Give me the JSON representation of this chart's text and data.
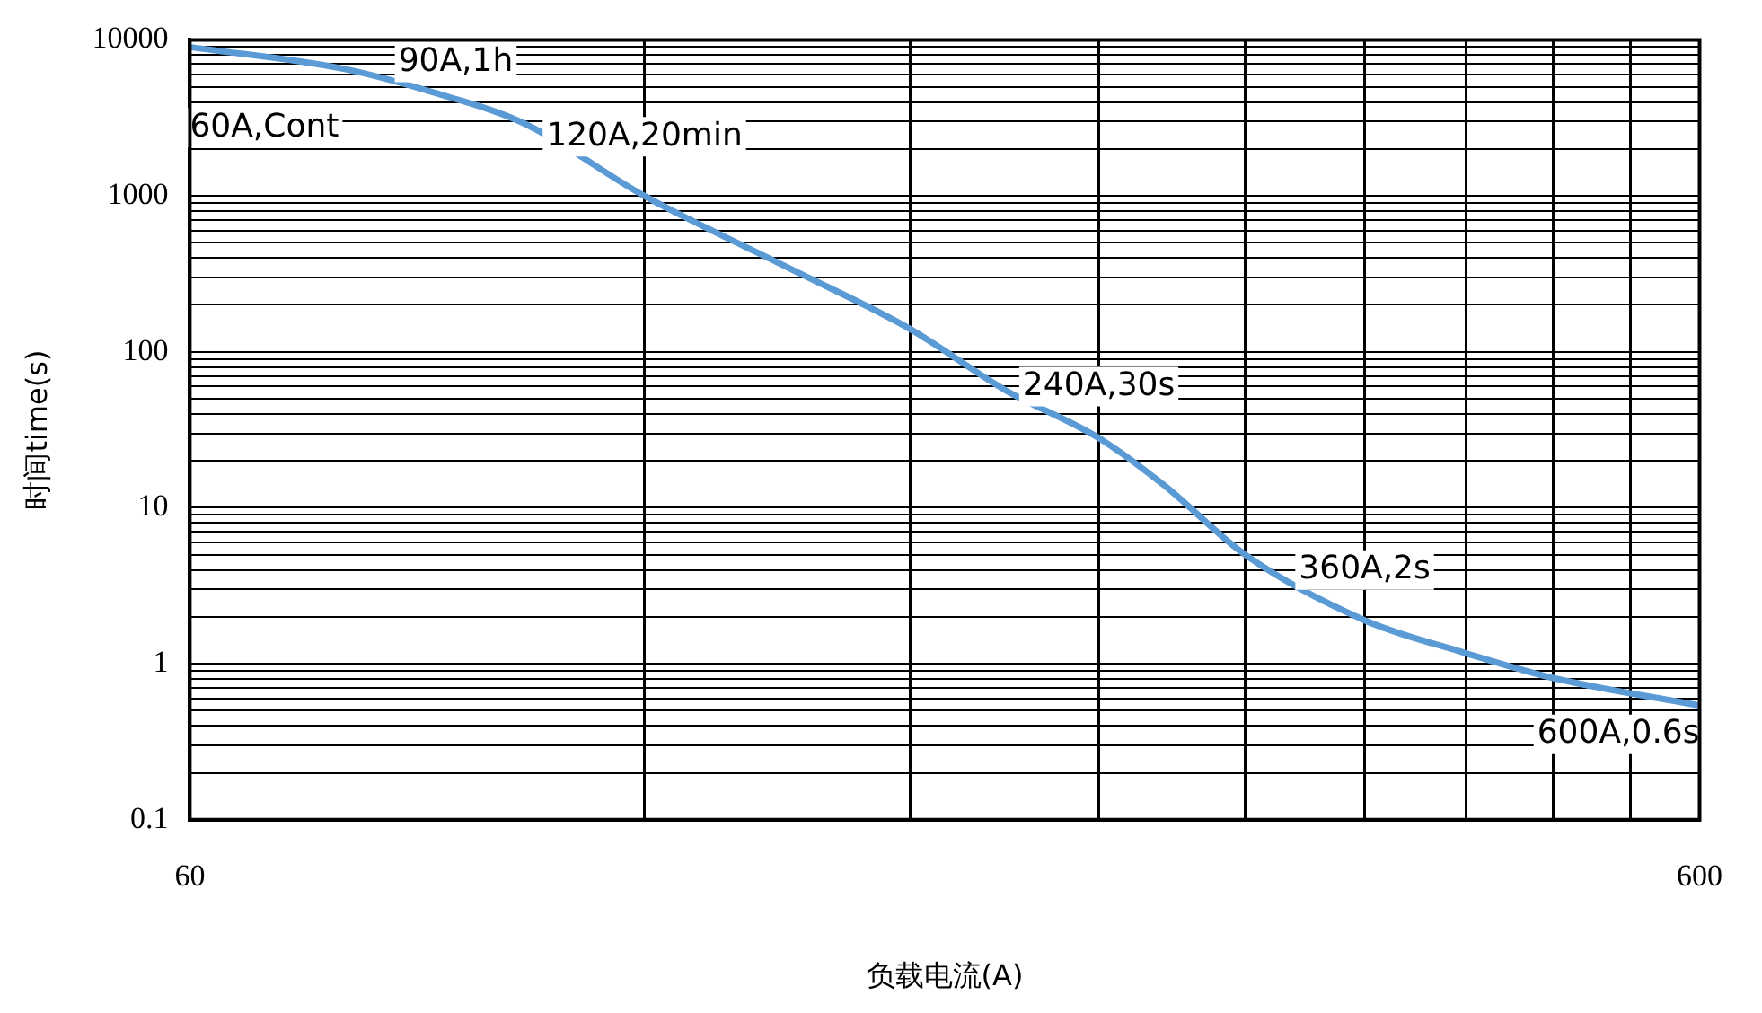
{
  "chart_data": {
    "type": "line",
    "xlabel": "负载电流(A)",
    "ylabel": "时间time(s)",
    "log": "xy",
    "grid": true,
    "marker": "none",
    "line_style": "solid",
    "xlim": [
      60,
      600
    ],
    "ylim": [
      0.1,
      10000
    ],
    "xticks": [
      60,
      {
        "value": 120,
        "label": null
      },
      {
        "value": 180,
        "label": null
      },
      {
        "value": 240,
        "label": null
      },
      {
        "value": 300,
        "label": null
      },
      {
        "value": 360,
        "label": null
      },
      {
        "value": 420,
        "label": null
      },
      {
        "value": 480,
        "label": null
      },
      {
        "value": 540,
        "label": null
      },
      600
    ],
    "yticks": [
      0.1,
      {
        "value": 0.2,
        "label": null
      },
      {
        "value": 0.3,
        "label": null
      },
      {
        "value": 0.4,
        "label": null
      },
      {
        "value": 0.5,
        "label": null
      },
      {
        "value": 0.6,
        "label": null
      },
      {
        "value": 0.7,
        "label": null
      },
      {
        "value": 0.8,
        "label": null
      },
      {
        "value": 0.9,
        "label": null
      },
      1,
      {
        "value": 2,
        "label": null
      },
      {
        "value": 3,
        "label": null
      },
      {
        "value": 4,
        "label": null
      },
      {
        "value": 5,
        "label": null
      },
      {
        "value": 6,
        "label": null
      },
      {
        "value": 7,
        "label": null
      },
      {
        "value": 8,
        "label": null
      },
      {
        "value": 9,
        "label": null
      },
      10,
      {
        "value": 20,
        "label": null
      },
      {
        "value": 30,
        "label": null
      },
      {
        "value": 40,
        "label": null
      },
      {
        "value": 50,
        "label": null
      },
      {
        "value": 60,
        "label": null
      },
      {
        "value": 70,
        "label": null
      },
      {
        "value": 80,
        "label": null
      },
      {
        "value": 90,
        "label": null
      },
      100,
      {
        "value": 200,
        "label": null
      },
      {
        "value": 300,
        "label": null
      },
      {
        "value": 400,
        "label": null
      },
      {
        "value": 500,
        "label": null
      },
      {
        "value": 600,
        "label": null
      },
      {
        "value": 700,
        "label": null
      },
      {
        "value": 800,
        "label": null
      },
      {
        "value": 900,
        "label": null
      },
      1000,
      {
        "value": 2000,
        "label": null
      },
      {
        "value": 3000,
        "label": null
      },
      {
        "value": 4000,
        "label": null
      },
      {
        "value": 5000,
        "label": null
      },
      {
        "value": 6000,
        "label": null
      },
      {
        "value": 7000,
        "label": null
      },
      {
        "value": 8000,
        "label": null
      },
      {
        "value": 9000,
        "label": null
      },
      10000
    ],
    "series": [
      {
        "color": "#5b9bd5",
        "x": [
          60,
          76,
          87,
          100,
          120,
          150,
          180,
          208,
          240,
          265,
          300,
          360,
          420,
          480,
          600
        ],
        "values": [
          9000,
          6500,
          4600,
          2900,
          1000,
          340,
          140,
          57,
          28,
          14,
          5,
          1.9,
          1.17,
          0.81,
          0.54
        ]
      }
    ],
    "annotations": [
      {
        "text": "60A,Cont",
        "x": 60,
        "y": 9000
      },
      {
        "text": "90A,1h",
        "x": 90,
        "y": 3600
      },
      {
        "text": "120A,20min",
        "x": 120,
        "y": 1200
      },
      {
        "text": "240A,30s",
        "x": 240,
        "y": 30
      },
      {
        "text": "360A,2s",
        "x": 360,
        "y": 2
      },
      {
        "text": "600A,0.6s",
        "x": 600,
        "y": 0.6
      }
    ]
  }
}
